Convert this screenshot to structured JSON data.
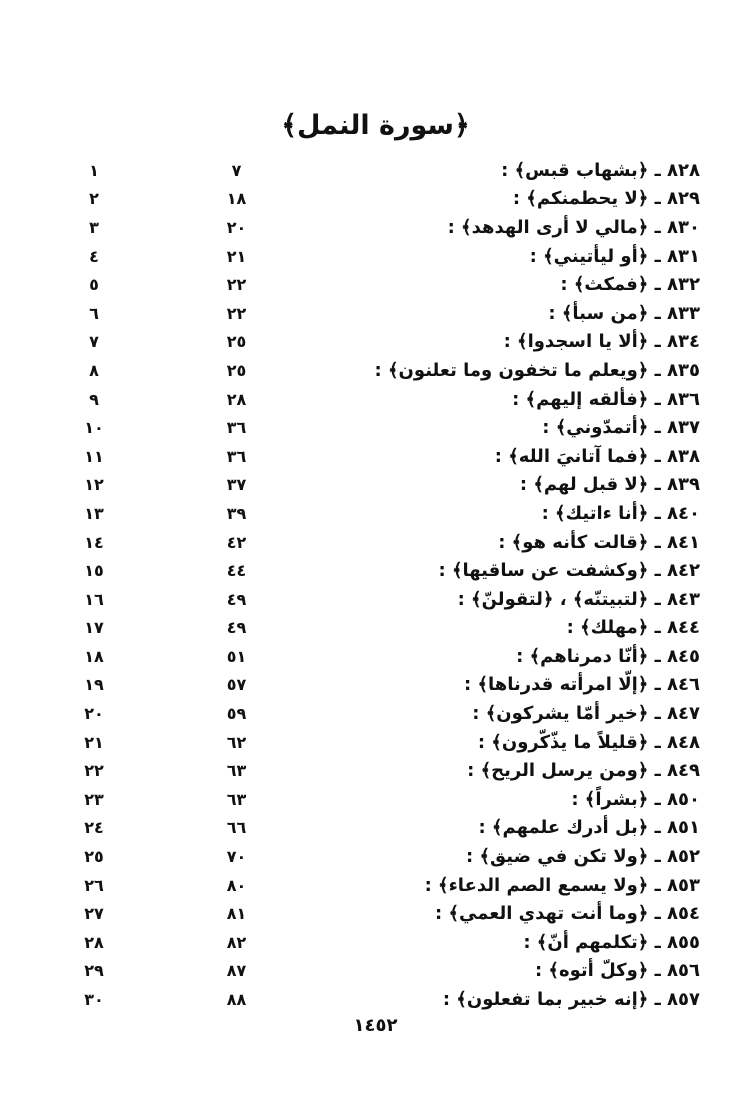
{
  "page": {
    "title": "﴿سورة النمل﴾",
    "footer_page_number": "١٤٥٢"
  },
  "index": {
    "rows": [
      {
        "entry": "٨٢٨ ـ ﴿بشهاب قبس﴾ :",
        "page": "٧",
        "seq": "١"
      },
      {
        "entry": "٨٢٩ ـ ﴿لا يحطمنكم﴾ :",
        "page": "١٨",
        "seq": "٢"
      },
      {
        "entry": "٨٣٠ ـ ﴿مالي لا أرى الهدهد﴾ :",
        "page": "٢٠",
        "seq": "٣"
      },
      {
        "entry": "٨٣١ ـ ﴿أو ليأتيني﴾ :",
        "page": "٢١",
        "seq": "٤"
      },
      {
        "entry": "٨٣٢ ـ ﴿فمكث﴾ :",
        "page": "٢٢",
        "seq": "٥"
      },
      {
        "entry": "٨٣٣ ـ ﴿من سبأ﴾ :",
        "page": "٢٢",
        "seq": "٦"
      },
      {
        "entry": "٨٣٤ ـ ﴿ألا يا اسجدوا﴾ :",
        "page": "٢٥",
        "seq": "٧"
      },
      {
        "entry": "٨٣٥ ـ ﴿ويعلم ما تخفون وما تعلنون﴾ :",
        "page": "٢٥",
        "seq": "٨"
      },
      {
        "entry": "٨٣٦ ـ ﴿فألقه إليهم﴾ :",
        "page": "٢٨",
        "seq": "٩"
      },
      {
        "entry": "٨٣٧ ـ ﴿أتمدّوني﴾ :",
        "page": "٣٦",
        "seq": "١٠"
      },
      {
        "entry": "٨٣٨ ـ ﴿فما آتانيَ الله﴾ :",
        "page": "٣٦",
        "seq": "١١"
      },
      {
        "entry": "٨٣٩ ـ ﴿لا قبل لهم﴾ :",
        "page": "٣٧",
        "seq": "١٢"
      },
      {
        "entry": "٨٤٠ ـ ﴿أنا ءاتيك﴾ :",
        "page": "٣٩",
        "seq": "١٣"
      },
      {
        "entry": "٨٤١ ـ ﴿قالت كأنه هو﴾ :",
        "page": "٤٢",
        "seq": "١٤"
      },
      {
        "entry": "٨٤٢ ـ ﴿وكشفت عن ساقيها﴾ :",
        "page": "٤٤",
        "seq": "١٥"
      },
      {
        "entry": "٨٤٣ ـ ﴿لتبيتنّه﴾ ، ﴿لتقولنّ﴾ :",
        "page": "٤٩",
        "seq": "١٦"
      },
      {
        "entry": "٨٤٤ ـ ﴿مهلك﴾ :",
        "page": "٤٩",
        "seq": "١٧"
      },
      {
        "entry": "٨٤٥ ـ ﴿أنّا دمرناهم﴾ :",
        "page": "٥١",
        "seq": "١٨"
      },
      {
        "entry": "٨٤٦ ـ ﴿إلّا امرأته قدرناها﴾ :",
        "page": "٥٧",
        "seq": "١٩"
      },
      {
        "entry": "٨٤٧ ـ ﴿خير أمّا يشركون﴾ :",
        "page": "٥٩",
        "seq": "٢٠"
      },
      {
        "entry": "٨٤٨ ـ ﴿قليلاً ما يذّكّرون﴾ :",
        "page": "٦٢",
        "seq": "٢١"
      },
      {
        "entry": "٨٤٩ ـ ﴿ومن يرسل الريح﴾ :",
        "page": "٦٣",
        "seq": "٢٢"
      },
      {
        "entry": "٨٥٠ ـ ﴿بشراً﴾ :",
        "page": "٦٣",
        "seq": "٢٣"
      },
      {
        "entry": "٨٥١ ـ ﴿بل أدرك علمهم﴾ :",
        "page": "٦٦",
        "seq": "٢٤"
      },
      {
        "entry": "٨٥٢ ـ ﴿ولا تكن في ضيق﴾ :",
        "page": "٧٠",
        "seq": "٢٥"
      },
      {
        "entry": "٨٥٣ ـ ﴿ولا يسمع الصم الدعاء﴾ :",
        "page": "٨٠",
        "seq": "٢٦"
      },
      {
        "entry": "٨٥٤ ـ ﴿وما أنت تهدي العمي﴾ :",
        "page": "٨١",
        "seq": "٢٧"
      },
      {
        "entry": "٨٥٥ ـ ﴿تكلمهم أنّ﴾ :",
        "page": "٨٢",
        "seq": "٢٨"
      },
      {
        "entry": "٨٥٦ ـ ﴿وكلّ أتوه﴾ :",
        "page": "٨٧",
        "seq": "٢٩"
      },
      {
        "entry": "٨٥٧ ـ ﴿إنه خبير بما تفعلون﴾ :",
        "page": "٨٨",
        "seq": "٣٠"
      }
    ]
  }
}
